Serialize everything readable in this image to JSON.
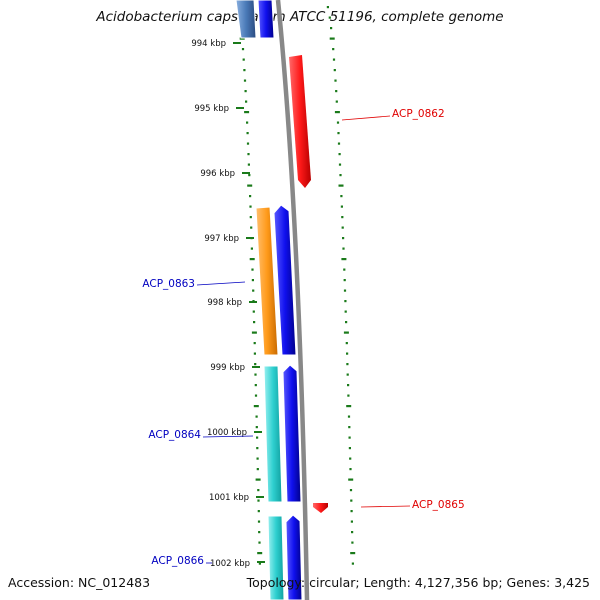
{
  "title": "Acidobacterium capsulatum ATCC 51196, complete genome",
  "footer": {
    "accession": "Accession: NC_012483",
    "topology": "Topology: circular; Length: 4,127,356 bp; Genes: 3,425"
  },
  "ticks": [
    {
      "label": "994 kbp",
      "pos_kbp": 994
    },
    {
      "label": "995 kbp",
      "pos_kbp": 995
    },
    {
      "label": "996 kbp",
      "pos_kbp": 996
    },
    {
      "label": "997 kbp",
      "pos_kbp": 997
    },
    {
      "label": "998 kbp",
      "pos_kbp": 998
    },
    {
      "label": "999 kbp",
      "pos_kbp": 999
    },
    {
      "label": "1000 kbp",
      "pos_kbp": 1000
    },
    {
      "label": "1001 kbp",
      "pos_kbp": 1001
    },
    {
      "label": "1002 kbp",
      "pos_kbp": 1002
    }
  ],
  "gene_labels": [
    {
      "text": "ACP_0862",
      "strand": "forward",
      "color": "#e00000"
    },
    {
      "text": "ACP_0863",
      "strand": "reverse",
      "color": "#0000c0"
    },
    {
      "text": "ACP_0864",
      "strand": "reverse",
      "color": "#0000c0"
    },
    {
      "text": "ACP_0865",
      "strand": "forward",
      "color": "#e00000"
    },
    {
      "text": "ACP_0866",
      "strand": "reverse",
      "color": "#0000c0"
    }
  ],
  "colors": {
    "forward_gene": "#ff1a1a",
    "reverse_gene": "#1010ee",
    "cog_orange": "#ff9a1a",
    "cog_cyan": "#2fd0d0",
    "cog_steel": "#4a7ab8",
    "backbone": "#888888",
    "gc_skew": "#1a7a1a"
  }
}
